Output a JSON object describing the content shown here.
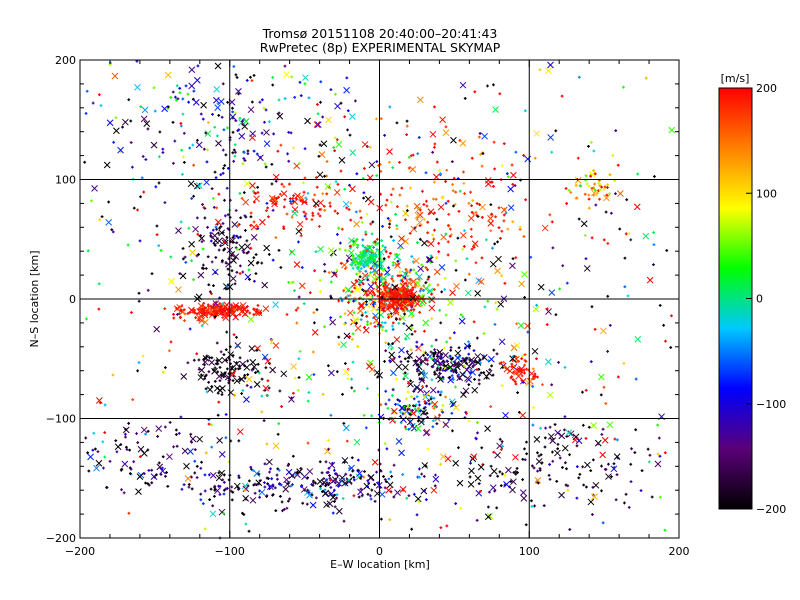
{
  "chart_data": {
    "type": "scatter",
    "title": "Tromsø 20151108 20:40:00–20:41:43",
    "subtitle": "RwPretec (8p) EXPERIMENTAL SKYMAP",
    "xlabel": "E–W location [km]",
    "ylabel": "N–S location [km]",
    "xlim": [
      -200,
      200
    ],
    "ylim": [
      -200,
      200
    ],
    "x_ticks": [
      "−200",
      "−100",
      "0",
      "100",
      "200"
    ],
    "y_ticks": [
      "−200",
      "−100",
      "0",
      "100",
      "200"
    ],
    "grid": true,
    "markers": [
      "x",
      "+"
    ],
    "colorbar": {
      "label": "[m/s]",
      "min": -200,
      "max": 200,
      "ticks": [
        "200",
        "100",
        "0",
        "−100",
        "−200"
      ],
      "colormap": [
        "#000000",
        "#5a0078",
        "#0000ff",
        "#00c8ff",
        "#00ff00",
        "#ffff00",
        "#ff8000",
        "#ff0000"
      ]
    },
    "clusters": [
      {
        "x": 5,
        "y": 5,
        "sx": 18,
        "sy": 18,
        "n": 340,
        "v": 60,
        "vs": 120
      },
      {
        "x": 12,
        "y": 2,
        "sx": 8,
        "sy": 6,
        "n": 200,
        "v": 190,
        "vs": 15
      },
      {
        "x": -8,
        "y": 35,
        "sx": 7,
        "sy": 8,
        "n": 120,
        "v": 10,
        "vs": 25
      },
      {
        "x": -108,
        "y": -10,
        "sx": 14,
        "sy": 3,
        "n": 180,
        "v": 190,
        "vs": 15
      },
      {
        "x": -100,
        "y": -60,
        "sx": 14,
        "sy": 10,
        "n": 110,
        "v": -190,
        "vs": 20
      },
      {
        "x": 45,
        "y": -55,
        "sx": 18,
        "sy": 8,
        "n": 200,
        "v": -150,
        "vs": 80
      },
      {
        "x": 95,
        "y": -58,
        "sx": 7,
        "sy": 6,
        "n": 60,
        "v": 185,
        "vs": 20
      },
      {
        "x": 25,
        "y": -92,
        "sx": 14,
        "sy": 8,
        "n": 120,
        "v": -60,
        "vs": 110
      },
      {
        "x": -50,
        "y": -155,
        "sx": 45,
        "sy": 10,
        "n": 280,
        "v": -160,
        "vs": 60
      },
      {
        "x": 120,
        "y": -140,
        "sx": 35,
        "sy": 18,
        "n": 140,
        "v": -180,
        "vs": 40
      },
      {
        "x": -150,
        "y": -130,
        "sx": 25,
        "sy": 15,
        "n": 80,
        "v": -170,
        "vs": 50
      },
      {
        "x": -105,
        "y": 45,
        "sx": 14,
        "sy": 18,
        "n": 120,
        "v": -180,
        "vs": 40
      },
      {
        "x": -60,
        "y": 80,
        "sx": 18,
        "sy": 12,
        "n": 80,
        "v": 190,
        "vs": 20
      },
      {
        "x": 145,
        "y": 95,
        "sx": 8,
        "sy": 7,
        "n": 45,
        "v": 120,
        "vs": 60
      },
      {
        "x": -100,
        "y": 150,
        "sx": 45,
        "sy": 35,
        "n": 220,
        "v": -120,
        "vs": 100
      },
      {
        "x": 40,
        "y": 80,
        "sx": 40,
        "sy": 30,
        "n": 160,
        "v": 180,
        "vs": 40
      },
      {
        "x": 0,
        "y": 0,
        "sx": 120,
        "sy": 110,
        "n": 900,
        "v": 0,
        "vs": 200
      }
    ]
  }
}
